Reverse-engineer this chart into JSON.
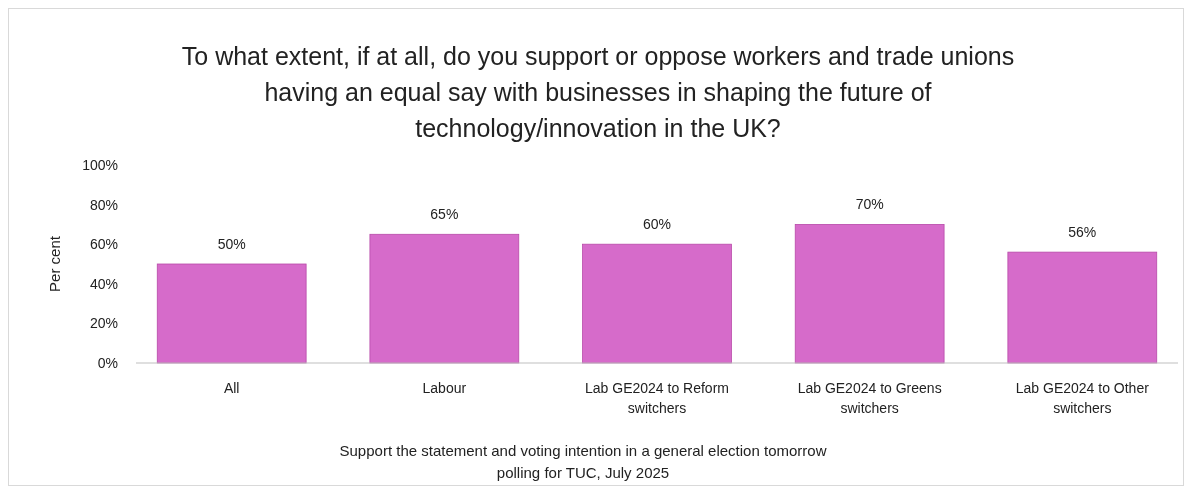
{
  "chart_data": {
    "type": "bar",
    "title": "To what extent, if at all, do you support or oppose workers and trade unions having an equal say with businesses in shaping the future of technology/innovation in the UK?",
    "categories": [
      "All",
      "Labour",
      "Lab GE2024 to Reform switchers",
      "Lab GE2024 to Greens switchers",
      "Lab GE2024 to Other switchers"
    ],
    "values": [
      50,
      65,
      60,
      70,
      56
    ],
    "value_labels": [
      "50%",
      "65%",
      "60%",
      "70%",
      "56%"
    ],
    "color": "#d66bca",
    "ylabel": "Per cent",
    "ylim": [
      0,
      100
    ],
    "yticks": [
      {
        "value": 0,
        "label": "0%"
      },
      {
        "value": 20,
        "label": "20%"
      },
      {
        "value": 40,
        "label": "40%"
      },
      {
        "value": 60,
        "label": "60%"
      },
      {
        "value": 80,
        "label": "80%"
      },
      {
        "value": 100,
        "label": "100%"
      }
    ],
    "grid": false,
    "annotations": [
      "Support the statement and voting intention in a general election tomorrow",
      "polling for TUC, July 2025"
    ]
  }
}
